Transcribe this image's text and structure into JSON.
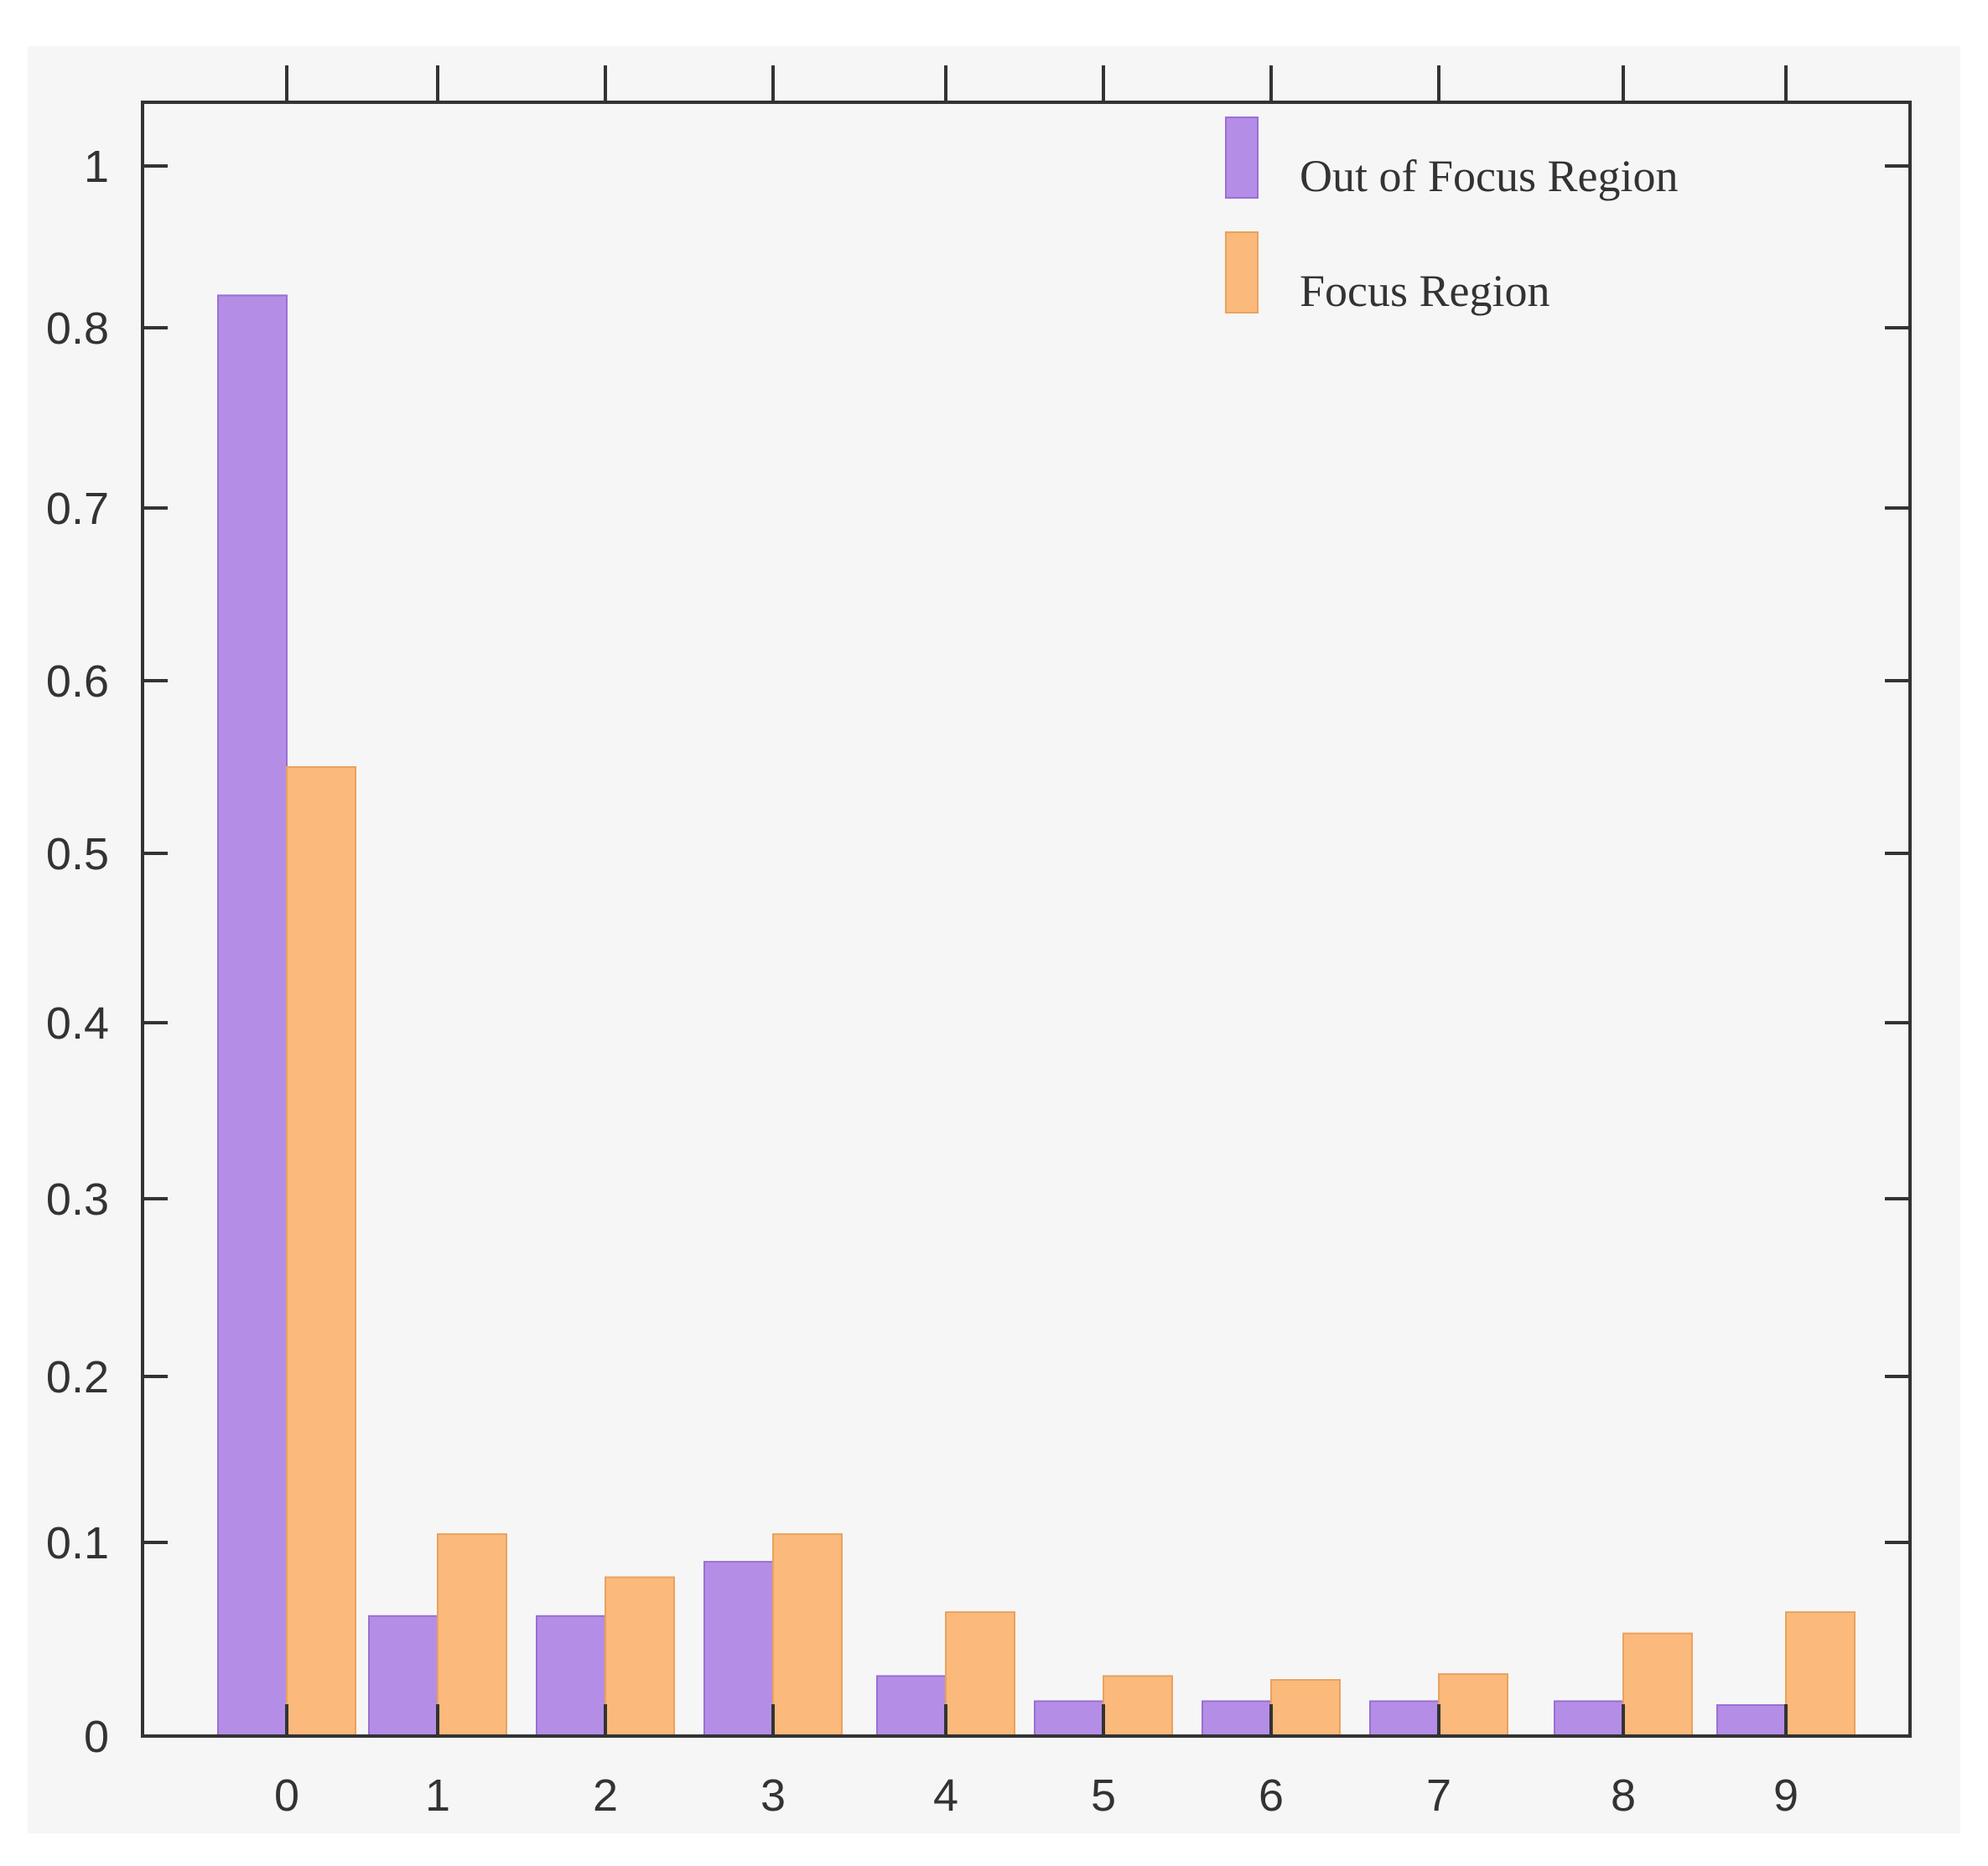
{
  "chart_data": {
    "type": "bar",
    "title": "",
    "xlabel": "",
    "ylabel": "",
    "categories": [
      "0",
      "1",
      "2",
      "3",
      "4",
      "5",
      "6",
      "7",
      "8",
      "9"
    ],
    "series": [
      {
        "name": "Out of Focus Region",
        "color": "#b48ee6",
        "values": [
          0.84,
          0.062,
          0.062,
          0.09,
          0.031,
          0.018,
          0.018,
          0.018,
          0.018,
          0.016
        ]
      },
      {
        "name": "Focus Region",
        "color": "#fbb97b",
        "values": [
          0.55,
          0.105,
          0.082,
          0.105,
          0.064,
          0.031,
          0.029,
          0.032,
          0.053,
          0.064
        ]
      }
    ],
    "ylim": [
      0,
      1.04
    ],
    "y_ticks": [
      "0",
      "0.1",
      "0.2",
      "0.3",
      "0.4",
      "0.5",
      "0.6",
      "0.7",
      "0.8",
      "1"
    ],
    "legend_position": "top-right",
    "grid": false,
    "background": "#f6f6f6",
    "axis_color": "#333333"
  }
}
